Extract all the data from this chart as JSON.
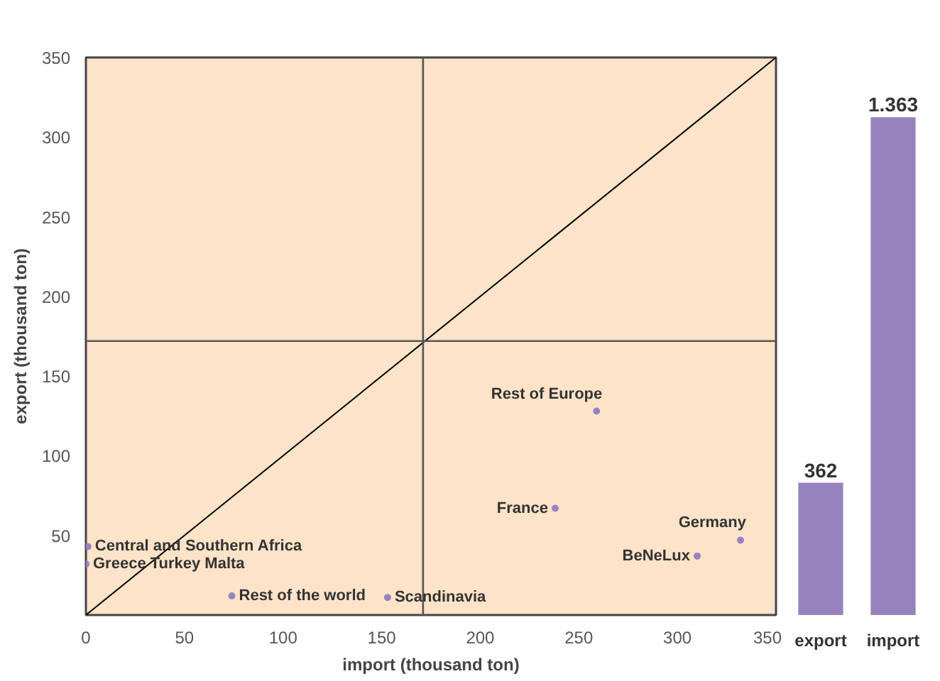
{
  "chart_data": [
    {
      "type": "scatter",
      "xlabel": "import (thousand ton)",
      "ylabel": "export (thousand ton)",
      "xlim": [
        0,
        350
      ],
      "ylim": [
        0,
        350
      ],
      "xticks": [
        0,
        50,
        100,
        150,
        200,
        250,
        300,
        350
      ],
      "yticks": [
        50,
        100,
        150,
        200,
        250,
        300,
        350
      ],
      "grid": false,
      "marker": "circle",
      "series": [
        {
          "color": "#9683c0",
          "x": [
            1,
            0,
            74,
            153,
            259,
            238,
            332,
            310
          ],
          "values": [
            43,
            32,
            12,
            11,
            128,
            67,
            47,
            37
          ]
        },
        {
          "type": "line",
          "marker": "none",
          "color": "#000000",
          "x": [
            0,
            350
          ],
          "values": [
            0,
            350
          ]
        }
      ],
      "annotations": [
        {
          "text": "Central and Southern Africa",
          "x": 1,
          "y": 43
        },
        {
          "text": "Greece Turkey Malta",
          "x": 0,
          "y": 32
        },
        {
          "text": "Rest of the world",
          "x": 74,
          "y": 12
        },
        {
          "text": "Scandinavia",
          "x": 153,
          "y": 11
        },
        {
          "text": "Rest of Europe",
          "x": 259,
          "y": 128
        },
        {
          "text": "France",
          "x": 238,
          "y": 67
        },
        {
          "text": "Germany",
          "x": 332,
          "y": 47
        },
        {
          "text": "BeNeLux",
          "x": 310,
          "y": 37
        }
      ],
      "ref_lines": [
        {
          "axis": "x",
          "value": 171,
          "color": "#555555"
        },
        {
          "axis": "y",
          "value": 172,
          "color": "#555555"
        }
      ]
    },
    {
      "type": "bar",
      "categories": [
        "export",
        "import"
      ],
      "values": [
        362,
        1363
      ],
      "color": "#9683bd",
      "value_labels": [
        "362",
        "1.363"
      ]
    }
  ]
}
